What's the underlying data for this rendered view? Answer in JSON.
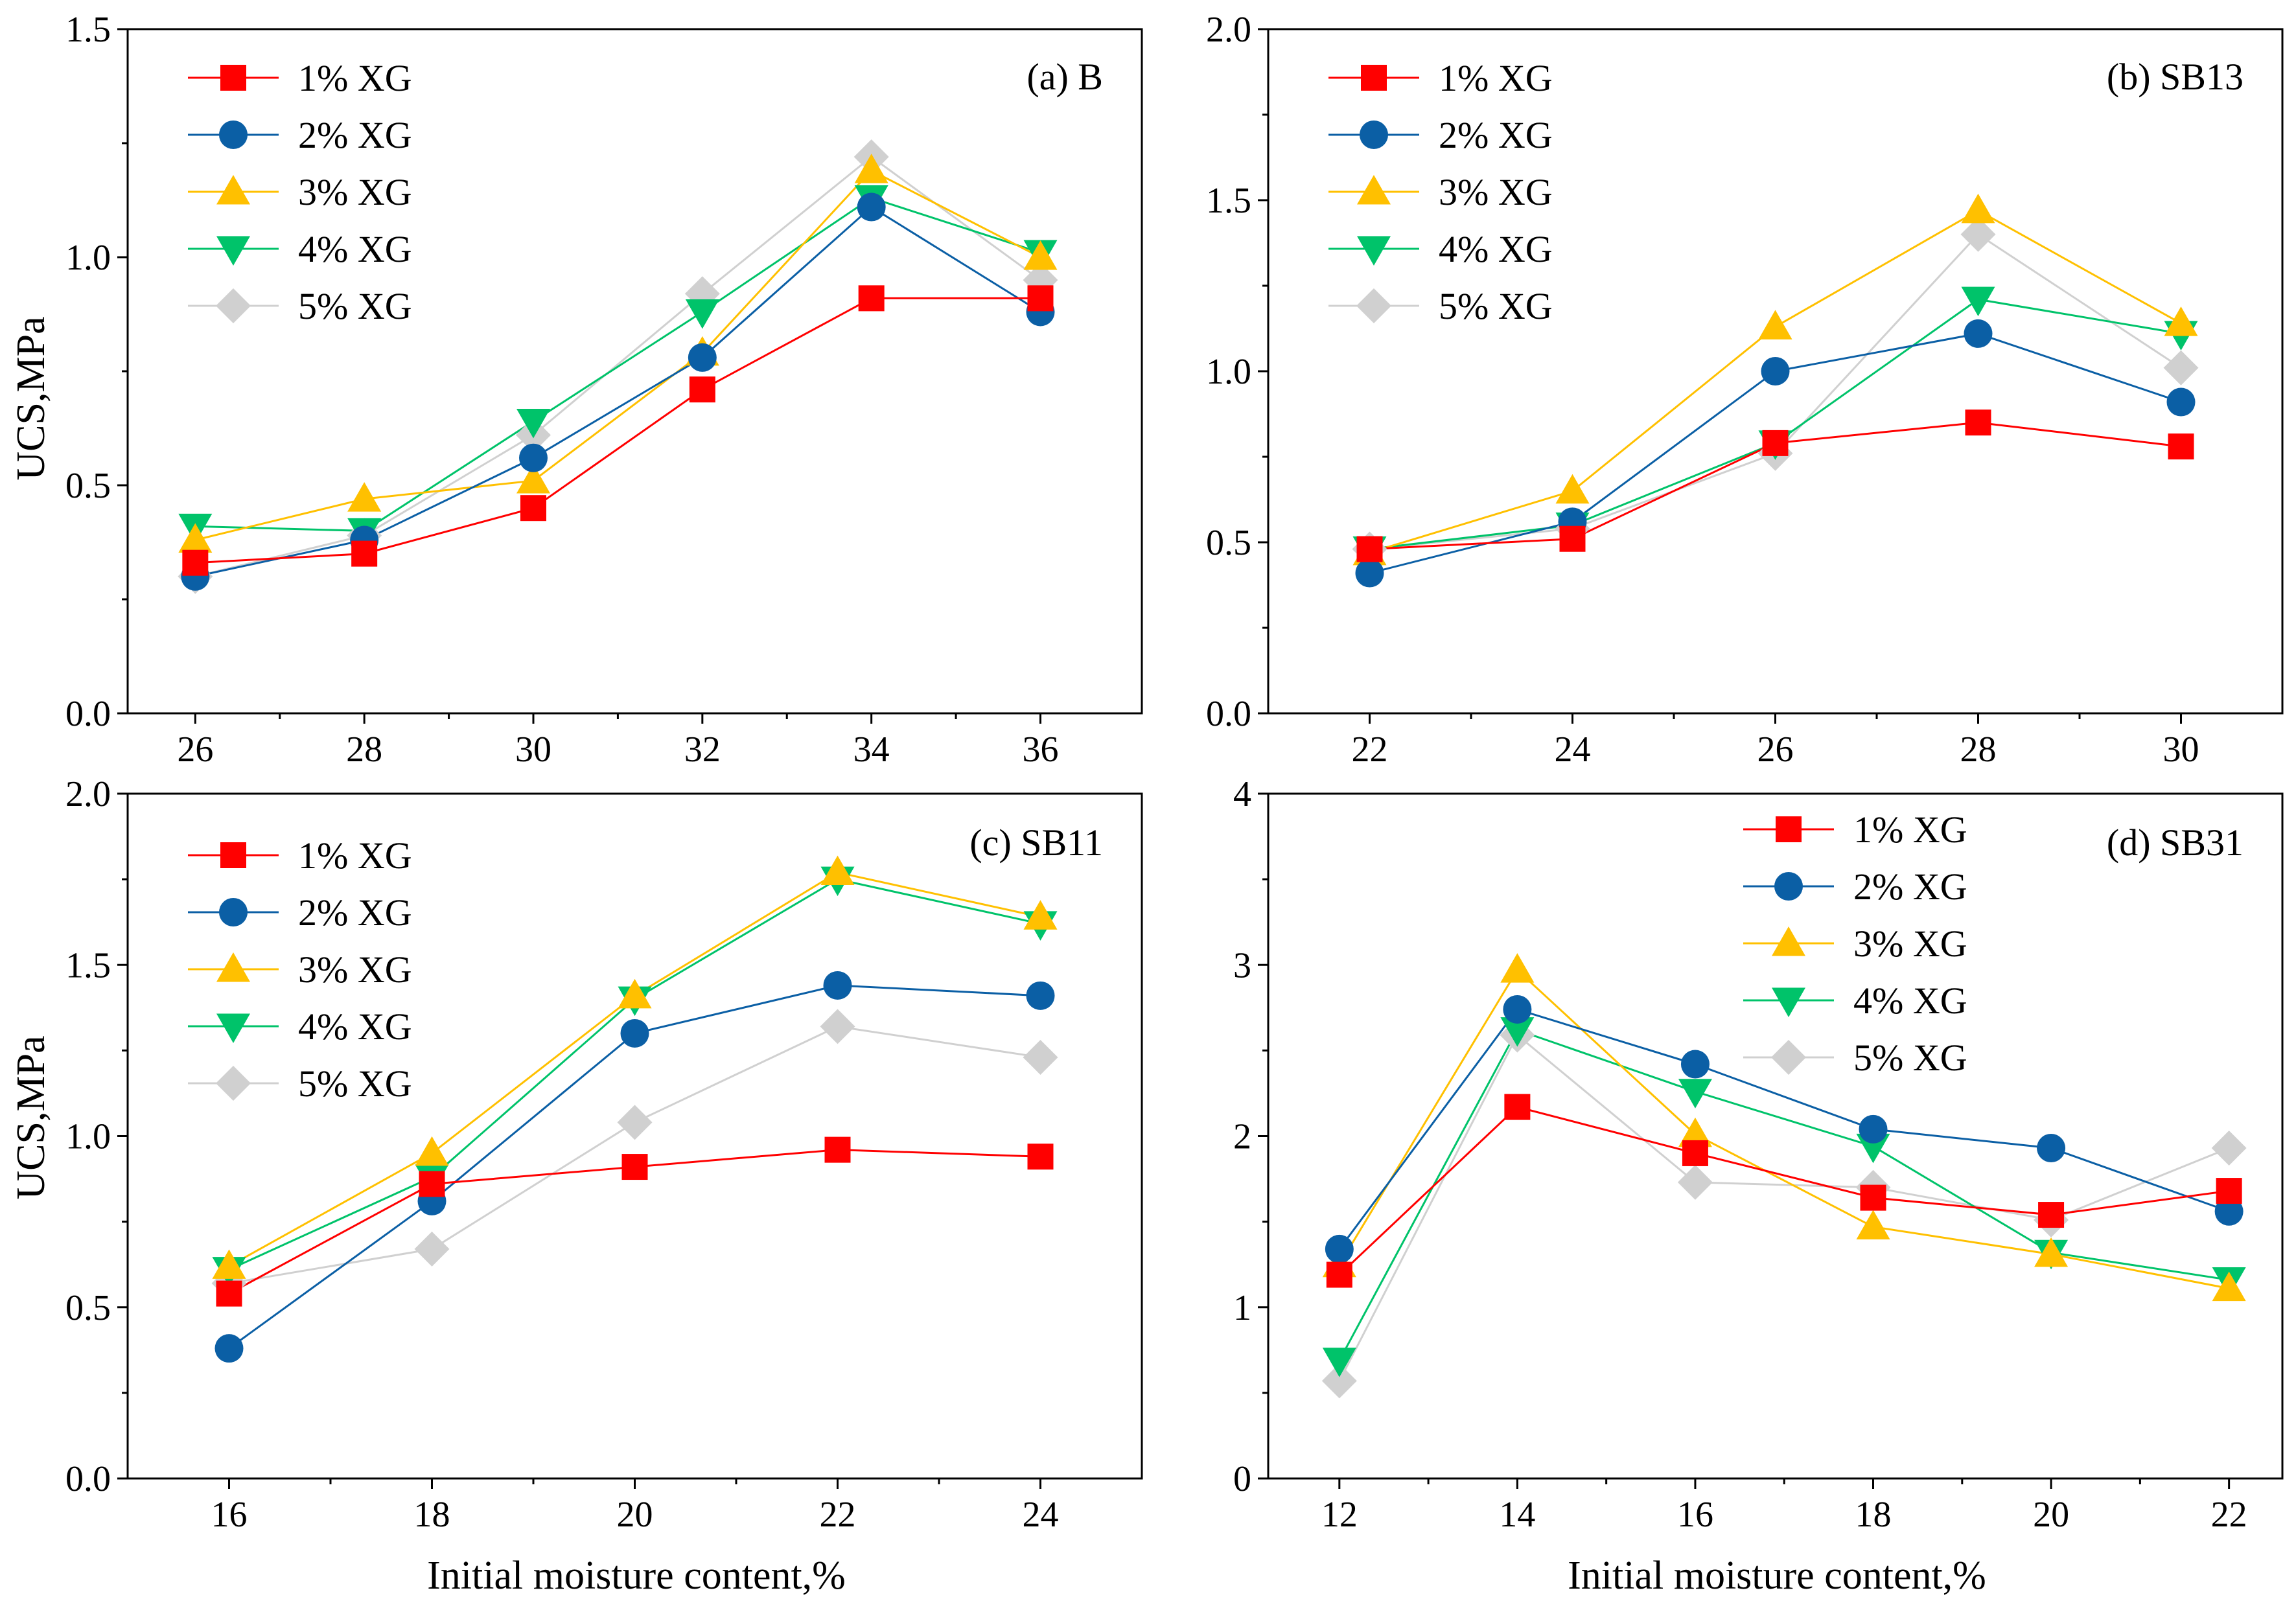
{
  "figure": {
    "xlabel_shared": "Initial moisture content,%",
    "ylabel_shared": "UCS,MPa"
  },
  "series_styles": [
    {
      "name": "1% XG",
      "color": "#ff0000",
      "marker": "square"
    },
    {
      "name": "2% XG",
      "color": "#0b5fa5",
      "marker": "circle"
    },
    {
      "name": "3% XG",
      "color": "#ffc000",
      "marker": "triangle-up"
    },
    {
      "name": "4% XG",
      "color": "#00c36a",
      "marker": "triangle-down"
    },
    {
      "name": "5% XG",
      "color": "#d0d0d0",
      "marker": "diamond"
    }
  ],
  "chart_data": [
    {
      "type": "line",
      "title": "(a) B",
      "xlabel": "",
      "ylabel": "UCS,MPa",
      "x": [
        26,
        28,
        30,
        32,
        34,
        36
      ],
      "xlim": [
        25.2,
        37.2
      ],
      "ylim": [
        0.0,
        1.5
      ],
      "xticks": [
        "26",
        "28",
        "30",
        "32",
        "34",
        "36"
      ],
      "yticks": [
        "0.0",
        "0.5",
        "1.0",
        "1.5"
      ],
      "legend": "top-left",
      "series": [
        {
          "name": "1% XG",
          "values": [
            0.33,
            0.35,
            0.45,
            0.71,
            0.91,
            0.91
          ]
        },
        {
          "name": "2% XG",
          "values": [
            0.3,
            0.38,
            0.56,
            0.78,
            1.11,
            0.88
          ]
        },
        {
          "name": "3% XG",
          "values": [
            0.38,
            0.47,
            0.51,
            0.79,
            1.19,
            1.0
          ]
        },
        {
          "name": "4% XG",
          "values": [
            0.41,
            0.4,
            0.64,
            0.88,
            1.13,
            1.01
          ]
        },
        {
          "name": "5% XG",
          "values": [
            0.3,
            0.39,
            0.61,
            0.92,
            1.22,
            0.95
          ]
        }
      ]
    },
    {
      "type": "line",
      "title": "(b) SB13",
      "xlabel": "",
      "ylabel": "",
      "x": [
        22,
        24,
        26,
        28,
        30
      ],
      "xlim": [
        21.0,
        31.0
      ],
      "ylim": [
        0.0,
        2.0
      ],
      "xticks": [
        "22",
        "24",
        "26",
        "28",
        "30"
      ],
      "yticks": [
        "0.0",
        "0.5",
        "1.0",
        "1.5",
        "2.0"
      ],
      "legend": "top-left",
      "series": [
        {
          "name": "1% XG",
          "values": [
            0.48,
            0.51,
            0.79,
            0.85,
            0.78
          ]
        },
        {
          "name": "2% XG",
          "values": [
            0.41,
            0.56,
            1.0,
            1.11,
            0.91
          ]
        },
        {
          "name": "3% XG",
          "values": [
            0.47,
            0.65,
            1.13,
            1.47,
            1.14
          ]
        },
        {
          "name": "4% XG",
          "values": [
            0.48,
            0.55,
            0.79,
            1.21,
            1.11
          ]
        },
        {
          "name": "5% XG",
          "values": [
            0.48,
            0.54,
            0.76,
            1.4,
            1.01
          ]
        }
      ]
    },
    {
      "type": "line",
      "title": "(c) SB11",
      "xlabel": "Initial moisture content,%",
      "ylabel": "UCS,MPa",
      "x": [
        16,
        18,
        20,
        22,
        24
      ],
      "xlim": [
        15.0,
        25.0
      ],
      "ylim": [
        0.0,
        2.0
      ],
      "xticks": [
        "16",
        "18",
        "20",
        "22",
        "24"
      ],
      "yticks": [
        "0.0",
        "0.5",
        "1.0",
        "1.5",
        "2.0"
      ],
      "legend": "top-left",
      "series": [
        {
          "name": "1% XG",
          "values": [
            0.54,
            0.86,
            0.91,
            0.96,
            0.94
          ]
        },
        {
          "name": "2% XG",
          "values": [
            0.38,
            0.81,
            1.3,
            1.44,
            1.41
          ]
        },
        {
          "name": "3% XG",
          "values": [
            0.62,
            0.95,
            1.41,
            1.77,
            1.64
          ]
        },
        {
          "name": "4% XG",
          "values": [
            0.61,
            0.88,
            1.4,
            1.75,
            1.62
          ]
        },
        {
          "name": "5% XG",
          "values": [
            0.57,
            0.67,
            1.04,
            1.32,
            1.23
          ]
        }
      ]
    },
    {
      "type": "line",
      "title": "(d) SB31",
      "xlabel": "Initial moisture content,%",
      "ylabel": "",
      "x": [
        12,
        14,
        16,
        18,
        20,
        22
      ],
      "xlim": [
        11.2,
        22.6
      ],
      "ylim": [
        0,
        4
      ],
      "xticks": [
        "12",
        "14",
        "16",
        "18",
        "20",
        "22"
      ],
      "yticks": [
        "0",
        "1",
        "2",
        "3",
        "4"
      ],
      "legend": "top-center",
      "series": [
        {
          "name": "1% XG",
          "values": [
            1.19,
            2.17,
            1.9,
            1.64,
            1.54,
            1.68
          ]
        },
        {
          "name": "2% XG",
          "values": [
            1.34,
            2.74,
            2.42,
            2.04,
            1.93,
            1.56
          ]
        },
        {
          "name": "3% XG",
          "values": [
            1.25,
            2.97,
            2.01,
            1.47,
            1.31,
            1.11
          ]
        },
        {
          "name": "4% XG",
          "values": [
            0.69,
            2.62,
            2.26,
            1.94,
            1.32,
            1.16
          ]
        },
        {
          "name": "5% XG",
          "values": [
            0.57,
            2.59,
            1.73,
            1.7,
            1.51,
            1.93
          ]
        }
      ]
    }
  ]
}
